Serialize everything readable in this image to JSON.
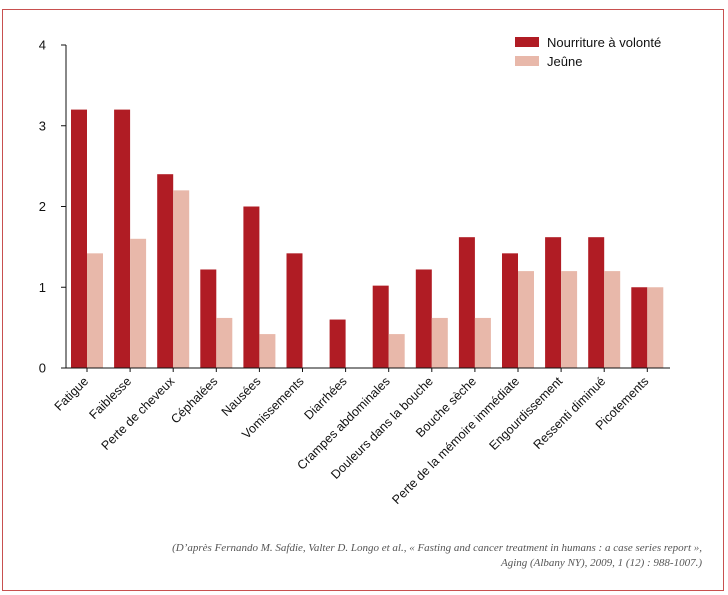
{
  "chart_data": {
    "type": "bar",
    "categories": [
      "Fatigue",
      "Faiblesse",
      "Perte de cheveux",
      "Céphalées",
      "Nausées",
      "Vomissements",
      "Diarrhées",
      "Crampes abdominales",
      "Douleurs dans la bouche",
      "Bouche sèche",
      "Perte de la mémoire immédiate",
      "Engourdissement",
      "Ressenti diminué",
      "Picotements"
    ],
    "series": [
      {
        "name": "Nourriture à volonté",
        "values": [
          3.2,
          3.2,
          2.4,
          1.22,
          2.0,
          1.42,
          0.6,
          1.02,
          1.22,
          1.62,
          1.42,
          1.62,
          1.62,
          1.0
        ]
      },
      {
        "name": "Jeûne",
        "values": [
          1.42,
          1.6,
          2.2,
          0.62,
          0.42,
          0,
          0,
          0.42,
          0.62,
          0.62,
          1.2,
          1.2,
          1.2,
          1.0
        ]
      }
    ],
    "yticks": [
      "0",
      "1",
      "2",
      "3",
      "4"
    ],
    "ylim": [
      0,
      4
    ],
    "colors": [
      "#b01c24",
      "#e8b8aa"
    ],
    "legend_position": "top-right",
    "grid": false
  },
  "source": {
    "line1": "(D’après Fernando M. Safdie, Valter D. Longo et al., « Fasting and cancer treatment in humans : a case series report »,",
    "line2": "Aging (Albany NY), 2009, 1 (12) : 988-1007.)"
  }
}
